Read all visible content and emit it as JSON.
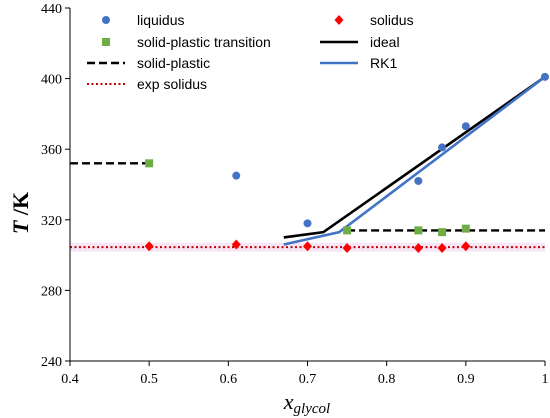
{
  "chart_data": {
    "type": "scatter",
    "xlabel_main": "x",
    "xlabel_sub": "glycol",
    "ylabel_italic": "T",
    "ylabel_rest": " /K",
    "xlim": [
      0.4,
      1.0
    ],
    "ylim": [
      240,
      440
    ],
    "xticks": [
      0.4,
      0.5,
      0.6,
      0.7,
      0.8,
      0.9,
      1.0
    ],
    "xtick_labels": [
      "0.4",
      "0.5",
      "0.6",
      "0.7",
      "0.8",
      "0.9",
      "1"
    ],
    "yticks": [
      240,
      280,
      320,
      360,
      400,
      440
    ],
    "ytick_labels": [
      "240",
      "280",
      "320",
      "360",
      "400",
      "440"
    ],
    "grid": false,
    "legend_placement": "top",
    "series": [
      {
        "name": "liquidus",
        "kind": "marker",
        "marker": "circle",
        "color": "#4472C4",
        "x": [
          0.61,
          0.7,
          0.84,
          0.87,
          0.9,
          1.0
        ],
        "y": [
          345,
          318,
          342,
          361,
          373,
          401
        ]
      },
      {
        "name": "solidus",
        "kind": "marker",
        "marker": "diamond",
        "color": "#FF0000",
        "x": [
          0.5,
          0.61,
          0.7,
          0.75,
          0.84,
          0.87,
          0.9
        ],
        "y": [
          305,
          306,
          305,
          304,
          304,
          304,
          305
        ]
      },
      {
        "name": "solid-plastic transition",
        "kind": "marker",
        "marker": "square",
        "color": "#70AD47",
        "x": [
          0.5,
          0.75,
          0.84,
          0.87,
          0.9
        ],
        "y": [
          352,
          314,
          314,
          313,
          315
        ]
      },
      {
        "name": "ideal",
        "kind": "line",
        "dash": "solid",
        "color": "#000000",
        "x": [
          0.67,
          0.72,
          1.0
        ],
        "y": [
          310,
          313,
          401
        ]
      },
      {
        "name": "solid-plastic",
        "kind": "line",
        "dash": "dashed",
        "color": "#000000",
        "segments": [
          {
            "x": [
              0.4,
              0.5
            ],
            "y": [
              352,
              352
            ]
          },
          {
            "x": [
              0.75,
              1.0
            ],
            "y": [
              314,
              314
            ]
          }
        ]
      },
      {
        "name": "RK1",
        "kind": "line",
        "dash": "solid",
        "color": "#4472C4",
        "x": [
          0.67,
          0.74,
          1.0
        ],
        "y": [
          306,
          313,
          401
        ]
      },
      {
        "name": "exp solidus",
        "kind": "line",
        "dash": "dotted",
        "color": "#C00000",
        "x": [
          0.4,
          1.0
        ],
        "y": [
          304.5,
          304.5
        ]
      }
    ]
  }
}
